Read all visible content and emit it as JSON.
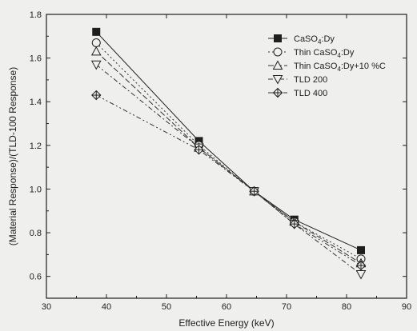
{
  "chart_data": {
    "type": "line",
    "xlabel": "Effective Energy (keV)",
    "ylabel": "(Material Response)/(TLD-100 Response)",
    "xlim": [
      30,
      90
    ],
    "ylim": [
      0.5,
      1.8
    ],
    "xticks": [
      30,
      40,
      50,
      60,
      70,
      80,
      90
    ],
    "yticks": [
      0.6,
      0.8,
      1.0,
      1.2,
      1.4,
      1.6,
      1.8
    ],
    "xtick_labels": [
      "30",
      "40",
      "50",
      "60",
      "70",
      "80",
      "90"
    ],
    "ytick_labels": [
      "0.6",
      "0.8",
      "1.0",
      "1.2",
      "1.4",
      "1.6",
      "1.8"
    ],
    "x": [
      38.3,
      55.4,
      64.6,
      71.3,
      82.4
    ],
    "series": [
      {
        "legend": {
          "main": "CaSO",
          "sub": "4",
          "rest": ":Dy"
        },
        "marker": "square-filled",
        "dash": "",
        "color": "#222222",
        "values": [
          1.72,
          1.22,
          0.99,
          0.86,
          0.72
        ]
      },
      {
        "legend": {
          "main": "Thin CaSO",
          "sub": "4",
          "rest": ":Dy"
        },
        "marker": "circle-open",
        "dash": "2,3",
        "color": "#333333",
        "values": [
          1.67,
          1.2,
          0.99,
          0.85,
          0.68
        ]
      },
      {
        "legend": {
          "main": "Thin CaSO",
          "sub": "4",
          "rest": ":Dy+10 %C"
        },
        "marker": "triangle-up-open",
        "dash": "7,3",
        "color": "#333333",
        "values": [
          1.63,
          1.19,
          0.99,
          0.85,
          0.66
        ]
      },
      {
        "legend": {
          "main": "TLD 200",
          "sub": "",
          "rest": ""
        },
        "marker": "triangle-down-open",
        "dash": "6,3,2,3",
        "color": "#333333",
        "values": [
          1.57,
          1.19,
          0.99,
          0.84,
          0.61
        ]
      },
      {
        "legend": {
          "main": "TLD 400",
          "sub": "",
          "rest": ""
        },
        "marker": "star-diamond",
        "dash": "6,3,2,3,2,3",
        "color": "#333333",
        "values": [
          1.43,
          1.18,
          0.99,
          0.84,
          0.65
        ]
      }
    ],
    "grid": false,
    "legend_position": "top-right"
  }
}
